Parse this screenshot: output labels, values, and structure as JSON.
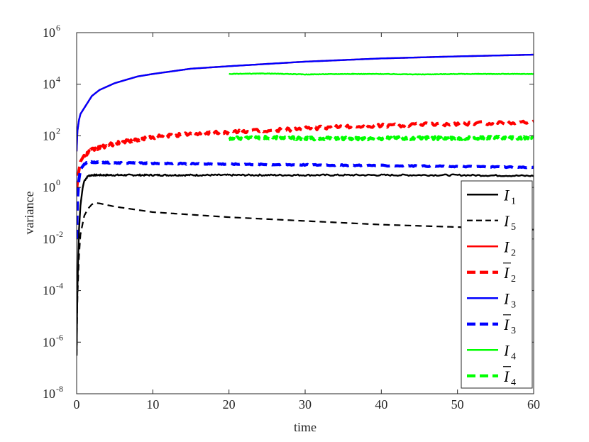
{
  "chart_data": {
    "type": "line",
    "title": "",
    "xlabel": "time",
    "ylabel": "variance",
    "xlim": [
      0,
      60
    ],
    "ylim": [
      1e-08,
      1000000.0
    ],
    "yscale": "log",
    "grid": false,
    "legend_position": "bottom-right",
    "x_ticks": [
      0,
      10,
      20,
      30,
      40,
      50,
      60
    ],
    "y_ticks": [
      {
        "value": 1e-08,
        "base": "10",
        "exp": "-8"
      },
      {
        "value": 1e-06,
        "base": "10",
        "exp": "-6"
      },
      {
        "value": 0.0001,
        "base": "10",
        "exp": "-4"
      },
      {
        "value": 0.01,
        "base": "10",
        "exp": "-2"
      },
      {
        "value": 1,
        "base": "10",
        "exp": "0"
      },
      {
        "value": 100.0,
        "base": "10",
        "exp": "2"
      },
      {
        "value": 10000.0,
        "base": "10",
        "exp": "4"
      },
      {
        "value": 1000000.0,
        "base": "10",
        "exp": "6"
      }
    ],
    "series": [
      {
        "name": "I1",
        "label_main": "I",
        "label_sub": "1",
        "bar": false,
        "color": "#000000",
        "dash": "solid",
        "x": [
          0,
          0.05,
          0.1,
          0.2,
          0.3,
          0.5,
          0.8,
          1,
          1.5,
          2,
          5,
          10,
          20,
          30,
          40,
          50,
          60
        ],
        "y": [
          3e-07,
          8e-06,
          0.0001,
          0.002,
          0.02,
          0.2,
          1.0,
          1.8,
          2.8,
          3.0,
          3.0,
          3.0,
          3.0,
          3.0,
          3.0,
          3.0,
          2.8
        ],
        "noise": 0.03
      },
      {
        "name": "I5",
        "label_main": "I",
        "label_sub": "5",
        "bar": false,
        "color": "#000000",
        "dash": "dashed",
        "x": [
          0,
          0.1,
          0.3,
          0.5,
          1,
          1.5,
          2,
          2.5,
          3,
          5,
          10,
          20,
          30,
          40,
          50,
          60
        ],
        "y": [
          3e-07,
          5e-05,
          0.002,
          0.015,
          0.08,
          0.15,
          0.22,
          0.25,
          0.24,
          0.18,
          0.11,
          0.07,
          0.05,
          0.036,
          0.029,
          0.023
        ],
        "noise": 0
      },
      {
        "name": "I2",
        "label_main": "I",
        "label_sub": "2",
        "bar": false,
        "color": "#ff0000",
        "dash": "solid",
        "x": [
          0,
          0.1,
          0.3,
          0.5,
          1,
          2,
          3,
          5,
          8,
          10,
          15,
          20,
          30,
          40,
          50,
          60
        ],
        "y": [
          25,
          150,
          400,
          700,
          1200,
          3500,
          6000,
          11000,
          20000,
          25000,
          40000,
          50000,
          75000,
          100000,
          120000,
          140000
        ],
        "noise": 0
      },
      {
        "name": "Ī2",
        "label_main": "I",
        "label_sub": "2",
        "bar": true,
        "color": "#ff0000",
        "dash": "bold-dashed",
        "x": [
          0,
          0.2,
          0.5,
          1,
          2,
          5,
          10,
          15,
          20,
          25,
          30,
          35,
          40,
          45,
          50,
          55,
          60
        ],
        "y": [
          0.8,
          3,
          10,
          18,
          28,
          50,
          90,
          120,
          140,
          160,
          190,
          220,
          250,
          270,
          290,
          320,
          350
        ],
        "noise": 0.07
      },
      {
        "name": "I3",
        "label_main": "I",
        "label_sub": "3",
        "bar": false,
        "color": "#0000ff",
        "dash": "solid",
        "x": [
          0,
          0.1,
          0.3,
          0.5,
          1,
          2,
          3,
          5,
          8,
          10,
          15,
          20,
          30,
          40,
          50,
          60
        ],
        "y": [
          25,
          150,
          400,
          700,
          1200,
          3500,
          6000,
          11000,
          20000,
          25000,
          40000,
          50000,
          75000,
          100000,
          120000,
          140000
        ],
        "noise": 0
      },
      {
        "name": "Ī3",
        "label_main": "I",
        "label_sub": "3",
        "bar": true,
        "color": "#0000ff",
        "dash": "bold-dashed",
        "x": [
          0,
          0.1,
          0.3,
          0.5,
          1,
          1.5,
          2,
          5,
          10,
          20,
          30,
          40,
          50,
          60
        ],
        "y": [
          0.01,
          0.3,
          2,
          5,
          8,
          9.5,
          9.5,
          9.0,
          8.5,
          8.0,
          7.5,
          7.0,
          6.5,
          6.0
        ],
        "noise": 0.02
      },
      {
        "name": "I4",
        "label_main": "I",
        "label_sub": "4",
        "bar": false,
        "color": "#00ff00",
        "dash": "solid",
        "x": [
          20,
          25,
          30,
          35,
          40,
          45,
          50,
          55,
          60
        ],
        "y": [
          25000,
          26000,
          24000,
          25000,
          25000,
          24000,
          25000,
          25000,
          25000
        ],
        "noise": 0.01
      },
      {
        "name": "Ī4",
        "label_main": "I",
        "label_sub": "4",
        "bar": true,
        "color": "#00ff00",
        "dash": "bold-dashed",
        "x": [
          20,
          25,
          30,
          35,
          40,
          45,
          50,
          55,
          60
        ],
        "y": [
          80,
          85,
          80,
          78,
          80,
          82,
          80,
          85,
          82
        ],
        "noise": 0.06
      }
    ]
  }
}
